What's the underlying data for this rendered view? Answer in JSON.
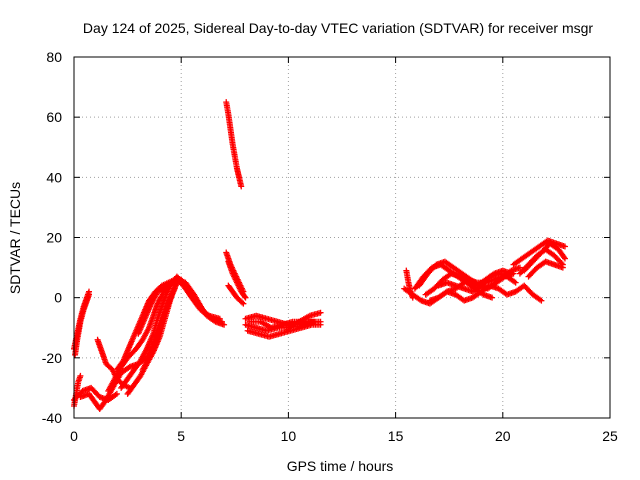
{
  "chart_data": {
    "type": "scatter",
    "title": "Day 124 of 2025, Sidereal Day-to-day VTEC variation (SDTVAR) for receiver msgr",
    "xlabel": "GPS time / hours",
    "ylabel": "SDTVAR / TECUs",
    "xlim": [
      0,
      25
    ],
    "ylim": [
      -40,
      80
    ],
    "x_ticks": [
      "0",
      "5",
      "10",
      "15",
      "20",
      "25"
    ],
    "y_ticks": [
      "-40",
      "-20",
      "0",
      "20",
      "40",
      "60",
      "80"
    ],
    "grid": true,
    "marker": "+",
    "marker_color": "#ff0000",
    "series": [
      {
        "segments": [
          [
            [
              0.0,
              -17
            ],
            [
              0.15,
              -12
            ],
            [
              0.3,
              -7
            ],
            [
              0.45,
              -3
            ],
            [
              0.6,
              0
            ],
            [
              0.7,
              2
            ]
          ],
          [
            [
              0.0,
              -36
            ],
            [
              0.1,
              -32
            ],
            [
              0.2,
              -28
            ],
            [
              0.3,
              -26
            ]
          ],
          [
            [
              0.05,
              -19
            ],
            [
              0.15,
              -14
            ],
            [
              0.3,
              -8
            ],
            [
              0.45,
              -4
            ],
            [
              0.6,
              -1
            ],
            [
              0.7,
              1
            ]
          ],
          [
            [
              0.0,
              -34
            ],
            [
              0.4,
              -31
            ],
            [
              0.8,
              -30
            ],
            [
              1.2,
              -33
            ],
            [
              1.6,
              -34
            ],
            [
              2.0,
              -32
            ]
          ],
          [
            [
              0.3,
              -33
            ],
            [
              0.7,
              -32
            ],
            [
              1.0,
              -35
            ],
            [
              1.2,
              -37
            ],
            [
              1.5,
              -34
            ],
            [
              1.8,
              -30
            ],
            [
              2.2,
              -25
            ],
            [
              2.6,
              -23
            ],
            [
              3.0,
              -22
            ],
            [
              3.4,
              -20
            ],
            [
              3.7,
              -16
            ],
            [
              4.0,
              -10
            ],
            [
              4.3,
              -4
            ],
            [
              4.6,
              2
            ],
            [
              4.9,
              6
            ],
            [
              5.2,
              5
            ],
            [
              5.6,
              1
            ],
            [
              6.0,
              -4
            ],
            [
              6.4,
              -7
            ],
            [
              6.8,
              -8
            ]
          ],
          [
            [
              1.1,
              -14
            ],
            [
              1.3,
              -18
            ],
            [
              1.5,
              -22
            ],
            [
              1.8,
              -24
            ],
            [
              2.0,
              -27
            ],
            [
              2.3,
              -29
            ],
            [
              2.6,
              -30
            ]
          ],
          [
            [
              1.6,
              -31
            ],
            [
              1.9,
              -27
            ],
            [
              2.2,
              -23
            ],
            [
              2.5,
              -20
            ],
            [
              2.9,
              -17
            ],
            [
              3.2,
              -14
            ],
            [
              3.5,
              -10
            ],
            [
              3.7,
              -6
            ],
            [
              3.9,
              -2
            ],
            [
              4.2,
              2
            ],
            [
              4.5,
              5
            ],
            [
              4.8,
              6
            ],
            [
              5.1,
              4
            ],
            [
              5.5,
              0
            ],
            [
              5.9,
              -4
            ],
            [
              6.3,
              -6
            ],
            [
              6.8,
              -7
            ]
          ],
          [
            [
              2.0,
              -24
            ],
            [
              2.3,
              -21
            ],
            [
              2.6,
              -16
            ],
            [
              2.9,
              -11
            ],
            [
              3.2,
              -6
            ],
            [
              3.5,
              -1
            ],
            [
              3.8,
              2
            ],
            [
              4.1,
              4
            ],
            [
              4.4,
              5
            ],
            [
              4.7,
              6
            ],
            [
              5.0,
              6
            ],
            [
              5.3,
              3
            ],
            [
              5.7,
              -1
            ],
            [
              6.1,
              -5
            ],
            [
              6.5,
              -7
            ],
            [
              6.9,
              -8
            ]
          ],
          [
            [
              2.2,
              -30
            ],
            [
              2.5,
              -27
            ],
            [
              2.8,
              -24
            ],
            [
              3.1,
              -21
            ],
            [
              3.4,
              -17
            ],
            [
              3.7,
              -12
            ],
            [
              3.9,
              -7
            ],
            [
              4.1,
              -3
            ],
            [
              4.3,
              1
            ],
            [
              4.5,
              4
            ],
            [
              4.8,
              7
            ],
            [
              5.1,
              5
            ],
            [
              5.4,
              1
            ],
            [
              5.8,
              -3
            ],
            [
              6.2,
              -6
            ],
            [
              6.6,
              -8
            ],
            [
              7.0,
              -9
            ]
          ],
          [
            [
              2.5,
              -32
            ],
            [
              2.8,
              -29
            ],
            [
              3.1,
              -26
            ],
            [
              3.4,
              -22
            ],
            [
              3.7,
              -18
            ],
            [
              4.0,
              -13
            ],
            [
              4.2,
              -8
            ],
            [
              4.4,
              -3
            ],
            [
              4.6,
              2
            ],
            [
              4.8,
              5
            ]
          ],
          [
            [
              3.0,
              -12
            ],
            [
              3.3,
              -7
            ],
            [
              3.6,
              -2
            ],
            [
              3.9,
              2
            ],
            [
              4.2,
              3
            ],
            [
              4.5,
              4
            ]
          ],
          [
            [
              3.2,
              -24
            ],
            [
              3.5,
              -20
            ],
            [
              3.8,
              -14
            ],
            [
              4.1,
              -8
            ],
            [
              4.4,
              -2
            ],
            [
              4.7,
              3
            ]
          ],
          [
            [
              7.1,
              65
            ],
            [
              7.2,
              61
            ],
            [
              7.3,
              56
            ],
            [
              7.4,
              51
            ],
            [
              7.5,
              47
            ],
            [
              7.6,
              43
            ],
            [
              7.7,
              40
            ],
            [
              7.8,
              37
            ]
          ],
          [
            [
              7.1,
              15
            ],
            [
              7.3,
              11
            ],
            [
              7.5,
              8
            ],
            [
              7.7,
              5
            ],
            [
              7.9,
              2
            ]
          ],
          [
            [
              7.2,
              12
            ],
            [
              7.4,
              8
            ],
            [
              7.6,
              5
            ],
            [
              7.8,
              2
            ],
            [
              8.0,
              0
            ]
          ],
          [
            [
              7.2,
              4
            ],
            [
              7.4,
              2
            ],
            [
              7.6,
              0
            ],
            [
              7.9,
              -2
            ]
          ],
          [
            [
              8.0,
              -7
            ],
            [
              8.5,
              -6
            ],
            [
              9.0,
              -7
            ],
            [
              9.5,
              -8
            ],
            [
              10.0,
              -9
            ],
            [
              10.5,
              -9
            ],
            [
              11.0,
              -8
            ],
            [
              11.5,
              -8
            ]
          ],
          [
            [
              8.0,
              -9
            ],
            [
              8.5,
              -10
            ],
            [
              9.0,
              -11
            ],
            [
              9.5,
              -10
            ],
            [
              10.0,
              -10
            ],
            [
              10.5,
              -8
            ],
            [
              11.0,
              -6
            ],
            [
              11.5,
              -5
            ]
          ],
          [
            [
              8.1,
              -11
            ],
            [
              8.6,
              -12
            ],
            [
              9.1,
              -13
            ],
            [
              9.6,
              -12
            ],
            [
              10.1,
              -11
            ],
            [
              10.6,
              -10
            ],
            [
              11.1,
              -9
            ],
            [
              11.5,
              -9
            ]
          ],
          [
            [
              8.2,
              -8
            ],
            [
              8.7,
              -8
            ],
            [
              9.2,
              -10
            ],
            [
              9.7,
              -9
            ],
            [
              10.2,
              -8
            ],
            [
              10.7,
              -8
            ],
            [
              11.2,
              -8
            ]
          ],
          [
            [
              15.4,
              3
            ],
            [
              15.8,
              1
            ],
            [
              16.2,
              -1
            ],
            [
              16.6,
              -2
            ],
            [
              17.0,
              0
            ],
            [
              17.4,
              2
            ],
            [
              17.8,
              3
            ],
            [
              18.2,
              5
            ]
          ],
          [
            [
              15.5,
              9
            ],
            [
              15.6,
              5
            ],
            [
              15.7,
              2
            ],
            [
              15.8,
              0
            ]
          ],
          [
            [
              15.9,
              3
            ],
            [
              16.3,
              7
            ],
            [
              16.7,
              10
            ],
            [
              17.1,
              11
            ],
            [
              17.5,
              9
            ],
            [
              17.9,
              7
            ],
            [
              18.3,
              5
            ],
            [
              18.7,
              3
            ],
            [
              19.1,
              1
            ],
            [
              19.5,
              0
            ]
          ],
          [
            [
              16.1,
              4
            ],
            [
              16.5,
              8
            ],
            [
              16.9,
              11
            ],
            [
              17.3,
              12
            ],
            [
              17.7,
              10
            ],
            [
              18.1,
              8
            ],
            [
              18.5,
              6
            ],
            [
              18.9,
              4
            ],
            [
              19.3,
              3
            ],
            [
              19.7,
              5
            ],
            [
              20.1,
              7
            ],
            [
              20.5,
              8
            ]
          ],
          [
            [
              16.4,
              1
            ],
            [
              16.8,
              3
            ],
            [
              17.2,
              6
            ],
            [
              17.6,
              8
            ],
            [
              18.0,
              7
            ],
            [
              18.4,
              5
            ],
            [
              18.8,
              4
            ],
            [
              19.2,
              6
            ],
            [
              19.6,
              8
            ],
            [
              20.0,
              9
            ],
            [
              20.4,
              8
            ]
          ],
          [
            [
              16.6,
              -1
            ],
            [
              17.0,
              0
            ],
            [
              17.4,
              2
            ],
            [
              17.8,
              1
            ],
            [
              18.2,
              -1
            ],
            [
              18.6,
              0
            ],
            [
              19.0,
              2
            ],
            [
              19.4,
              4
            ],
            [
              19.8,
              3
            ],
            [
              20.2,
              1
            ],
            [
              20.6,
              2
            ],
            [
              21.0,
              4
            ],
            [
              21.4,
              1
            ],
            [
              21.8,
              -1
            ]
          ],
          [
            [
              17.0,
              4
            ],
            [
              17.4,
              5
            ],
            [
              17.8,
              4
            ],
            [
              18.2,
              3
            ],
            [
              18.6,
              2
            ],
            [
              19.0,
              4
            ],
            [
              19.4,
              7
            ],
            [
              19.8,
              8
            ],
            [
              20.2,
              7
            ],
            [
              20.6,
              5
            ]
          ],
          [
            [
              18.0,
              7
            ],
            [
              18.4,
              6
            ],
            [
              18.8,
              5
            ],
            [
              19.2,
              5
            ],
            [
              19.6,
              6
            ],
            [
              20.0,
              7
            ],
            [
              20.4,
              9
            ],
            [
              20.8,
              10
            ]
          ],
          [
            [
              20.5,
              11
            ],
            [
              20.9,
              13
            ],
            [
              21.3,
              15
            ],
            [
              21.7,
              17
            ],
            [
              22.1,
              19
            ],
            [
              22.5,
              18
            ],
            [
              22.9,
              17
            ]
          ],
          [
            [
              20.8,
              8
            ],
            [
              21.2,
              11
            ],
            [
              21.6,
              14
            ],
            [
              22.0,
              16
            ],
            [
              22.4,
              14
            ],
            [
              22.8,
              11
            ]
          ],
          [
            [
              21.0,
              9
            ],
            [
              21.4,
              12
            ],
            [
              21.8,
              15
            ],
            [
              22.2,
              18
            ],
            [
              22.6,
              16
            ],
            [
              22.9,
              13
            ]
          ],
          [
            [
              21.2,
              7
            ],
            [
              21.6,
              10
            ],
            [
              22.0,
              12
            ],
            [
              22.4,
              11
            ],
            [
              22.8,
              10
            ]
          ]
        ]
      }
    ]
  }
}
